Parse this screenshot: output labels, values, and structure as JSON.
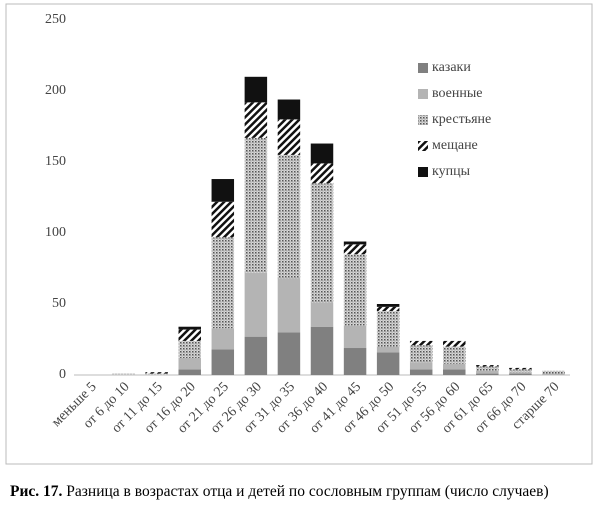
{
  "chart_data": {
    "type": "stacked-bar",
    "categories": [
      "меньше 5",
      "от 6 до 10",
      "от 11 до 15",
      "от 16 до 20",
      "от 21 до 25",
      "от 26 до 30",
      "от 31 до 35",
      "от 36 до 40",
      "от 41 до 45",
      "от 46 до 50",
      "от 51 до 55",
      "от 56 до 60",
      "от 61 до 65",
      "от 66 до 70",
      "старше 70"
    ],
    "series": [
      {
        "name": "казаки",
        "color": "#808080",
        "pattern": "solid",
        "values": [
          0,
          0,
          0,
          4,
          18,
          27,
          30,
          34,
          19,
          16,
          4,
          4,
          1,
          1,
          0
        ]
      },
      {
        "name": "военные",
        "color": "#b4b4b4",
        "pattern": "solid",
        "values": [
          0,
          0,
          0,
          8,
          15,
          45,
          38,
          17,
          16,
          4,
          5,
          4,
          2,
          1,
          1
        ]
      },
      {
        "name": "крестьяне",
        "color": "#8a8a8a",
        "pattern": "dots",
        "values": [
          0,
          1,
          1,
          12,
          64,
          95,
          87,
          84,
          50,
          25,
          12,
          12,
          3,
          2,
          2
        ]
      },
      {
        "name": "мещане",
        "color": "#111111",
        "pattern": "stripes",
        "values": [
          0,
          0,
          1,
          8,
          25,
          25,
          25,
          14,
          7,
          3,
          3,
          4,
          1,
          1,
          0
        ]
      },
      {
        "name": "купцы",
        "color": "#111111",
        "pattern": "solid",
        "values": [
          0,
          0,
          0,
          2,
          16,
          18,
          14,
          14,
          2,
          2,
          0,
          0,
          0,
          0,
          0
        ]
      }
    ],
    "ylim": [
      0,
      250
    ],
    "yticks": [
      0,
      50,
      100,
      150,
      200,
      250
    ],
    "grid": false,
    "legend": "top-right"
  },
  "caption": {
    "label": "Рис. 17.",
    "text": "Разница в возрастах отца и детей по сословным группам (число случаев)"
  }
}
